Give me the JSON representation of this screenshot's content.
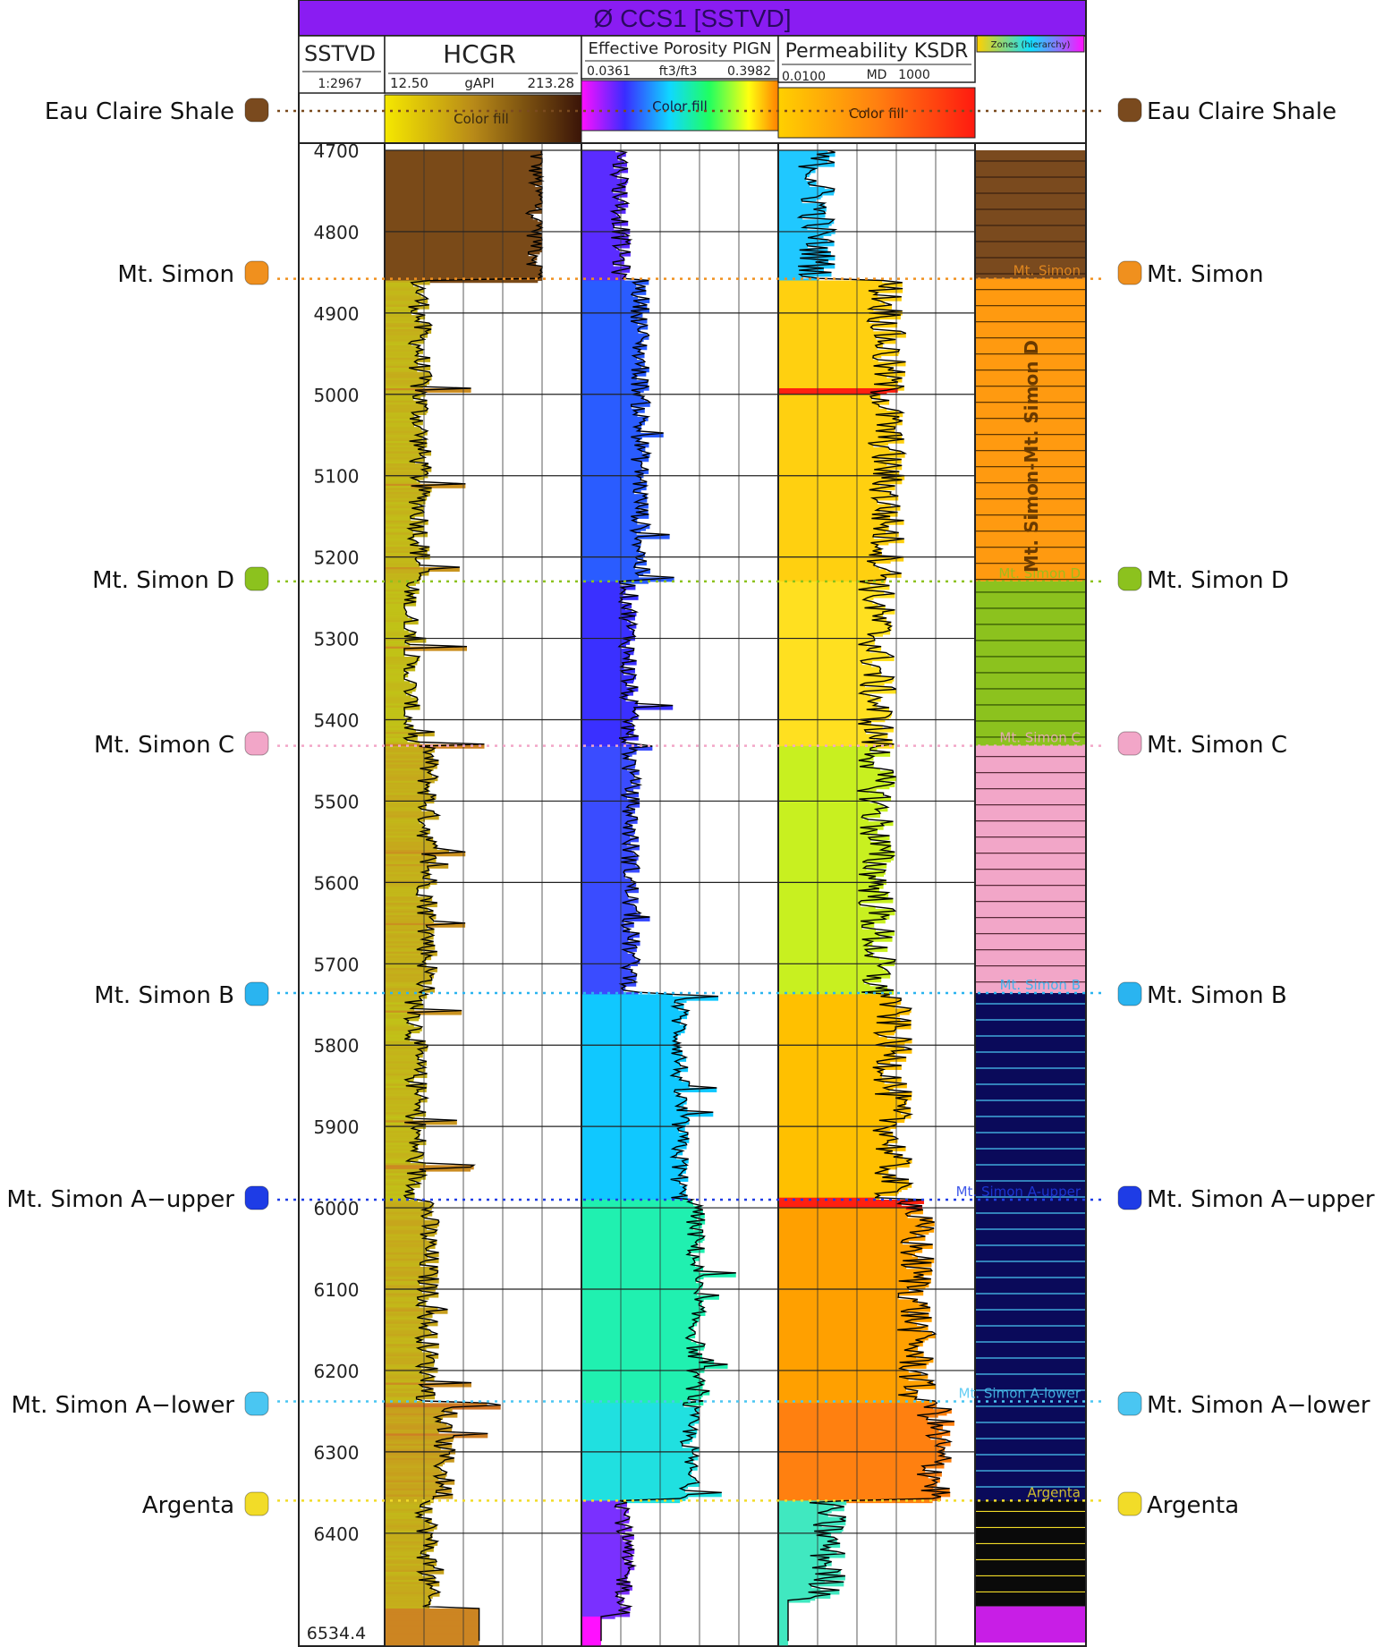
{
  "header": {
    "well_title": "Ø CCS1 [SSTVD]",
    "title_bg": "#8a1cf2"
  },
  "tracks": {
    "depth": {
      "label": "SSTVD",
      "scale": "1:2967"
    },
    "gr": {
      "label": "HCGR",
      "min": "12.50",
      "unit": "gAPI",
      "max": "213.28",
      "fill_label": "Color fill"
    },
    "porosity": {
      "label": "Effective Porosity PIGN",
      "min": "0.0361",
      "unit": "ft3/ft3",
      "max": "0.3982",
      "fill_label": "Color fill"
    },
    "permeability": {
      "label": "Permeability KSDR",
      "min": "0.0100",
      "unit": "MD",
      "max": "1000",
      "fill_label": "Color fill"
    },
    "zones": {
      "label": "Zones (hierarchy)"
    }
  },
  "depth_axis": {
    "top": 4700,
    "bottom": 6534.4,
    "bottom_label": "6534.4",
    "ticks": [
      "4700",
      "4800",
      "4900",
      "5000",
      "5100",
      "5200",
      "5300",
      "5400",
      "5500",
      "5600",
      "5700",
      "5800",
      "5900",
      "6000",
      "6100",
      "6200",
      "6300",
      "6400"
    ]
  },
  "formation_tops": [
    {
      "name": "Eau Claire Shale",
      "color": "#7a4a1e",
      "depth": 4612
    },
    {
      "name": "Mt. Simon",
      "color": "#f0901e",
      "depth": 4858,
      "track_label": "Mt. Simon"
    },
    {
      "name": "Mt. Simon D",
      "color": "#8cc21e",
      "depth": 5230,
      "track_label": "Mt. Simon D"
    },
    {
      "name": "Mt. Simon C",
      "color": "#f2a6c8",
      "depth": 5432,
      "track_label": "Mt. Simon C"
    },
    {
      "name": "Mt. Simon B",
      "color": "#2ab4f0",
      "depth": 5736,
      "track_label": "Mt. Simon B"
    },
    {
      "name": "Mt. Simon A−upper",
      "color": "#1e3ce6",
      "depth": 5990,
      "track_label": "Mt. Simon A-upper"
    },
    {
      "name": "Mt. Simon A−lower",
      "color": "#4ac6f2",
      "depth": 6238,
      "track_label": "Mt. Simon A-lower"
    },
    {
      "name": "Argenta",
      "color": "#f2dc28",
      "depth": 6360,
      "track_label": "Argenta"
    }
  ],
  "zone_fill_label": "Mt. Simon-Mt. Simon D",
  "zones": [
    {
      "top": 4700,
      "bottom": 4858,
      "color": "#7a4a1e",
      "line": "#3a2210"
    },
    {
      "top": 4858,
      "bottom": 5230,
      "color": "#ff9a10",
      "line": "#4a2a00"
    },
    {
      "top": 5230,
      "bottom": 5432,
      "color": "#8cc21e",
      "line": "#2a4a00"
    },
    {
      "top": 5432,
      "bottom": 5736,
      "color": "#f2a6c8",
      "line": "#5a2a3a"
    },
    {
      "top": 5736,
      "bottom": 6360,
      "color": "#0a0a5a",
      "line": "#4ac6f2"
    },
    {
      "top": 6360,
      "bottom": 6490,
      "color": "#0a0a0a",
      "line": "#f2dc28"
    },
    {
      "top": 6490,
      "bottom": 6534.4,
      "color": "#c81ee6",
      "line": "#c81ee6"
    }
  ]
}
